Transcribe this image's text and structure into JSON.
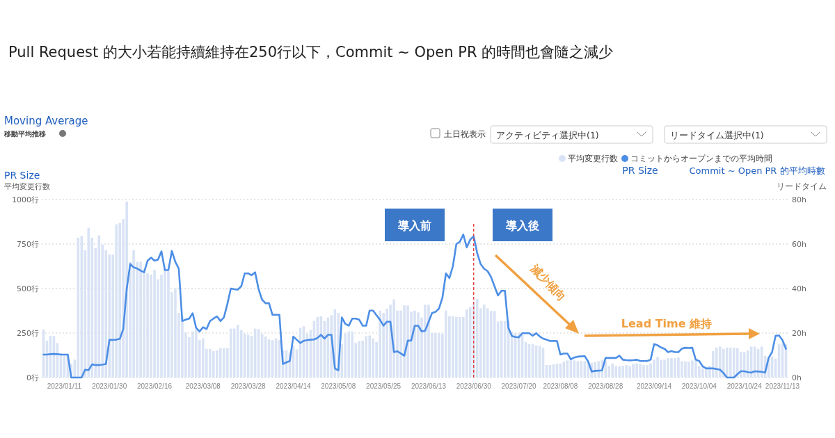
{
  "chart_data": {
    "type": "bar",
    "title": "Pull Request 的大小若能持續維持在250行以下，Commit ~ Open PR 的時間也會隨之減少",
    "ylabel": "平均変更行数",
    "y2label": "リードタイム",
    "categories": [
      null,
      null,
      null,
      null,
      null,
      null,
      "2023/01/11",
      null,
      null,
      null,
      null,
      null,
      null,
      null,
      null,
      null,
      null,
      null,
      null,
      "2023/01/30",
      null,
      null,
      null,
      null,
      null,
      null,
      null,
      null,
      null,
      null,
      null,
      null,
      "2023/02/16",
      null,
      null,
      null,
      null,
      null,
      null,
      null,
      null,
      null,
      null,
      null,
      null,
      null,
      "2023/03/08",
      null,
      null,
      null,
      null,
      null,
      null,
      null,
      null,
      null,
      null,
      null,
      null,
      "2023/03/28",
      null,
      null,
      null,
      null,
      null,
      null,
      null,
      null,
      null,
      null,
      null,
      null,
      "2023/04/14",
      null,
      null,
      null,
      null,
      null,
      null,
      null,
      null,
      null,
      null,
      null,
      null,
      "2023/05/08",
      null,
      null,
      null,
      null,
      null,
      null,
      null,
      null,
      null,
      null,
      null,
      null,
      "2023/05/25",
      null,
      null,
      null,
      null,
      null,
      null,
      null,
      null,
      null,
      null,
      null,
      null,
      "2023/06/13",
      null,
      null,
      null,
      null,
      null,
      null,
      null,
      null,
      null,
      null,
      null,
      null,
      "2023/06/30",
      null,
      null,
      null,
      null,
      null,
      null,
      null,
      null,
      null,
      null,
      null,
      null,
      "2023/07/20",
      null,
      null,
      null,
      null,
      null,
      null,
      null,
      null,
      null,
      null,
      null,
      "2023/08/08",
      null,
      null,
      null,
      null,
      null,
      null,
      null,
      null,
      null,
      null,
      null,
      null,
      "2023/08/28",
      null,
      null,
      null,
      null,
      null,
      null,
      null,
      null,
      null,
      null,
      null,
      null,
      null,
      "2023/09/14",
      null,
      null,
      null,
      null,
      null,
      null,
      null,
      null,
      null,
      null,
      null,
      null,
      "2023/10/04",
      null,
      null,
      null,
      null,
      null,
      null,
      null,
      null,
      null,
      null,
      null,
      null,
      "2023/10/24",
      null,
      null,
      null,
      null,
      null,
      null,
      null,
      null,
      null,
      null,
      "2023/11/13",
      null
    ],
    "series": [
      {
        "name": "平均変更行数",
        "color": "#d9e3f5",
        "values": [
          270,
          207,
          233,
          233,
          194,
          135,
          131,
          131,
          77,
          100,
          785,
          796,
          715,
          841,
          786,
          728,
          799,
          747,
          715,
          691,
          691,
          861,
          868,
          891,
          988,
          650,
          715,
          650,
          650,
          611,
          585,
          578,
          604,
          552,
          578,
          611,
          598,
          480,
          500,
          363,
          344,
          253,
          227,
          259,
          272,
          210,
          220,
          161,
          161,
          148,
          152,
          165,
          165,
          165,
          275,
          275,
          296,
          266,
          246,
          240,
          233,
          275,
          272,
          246,
          230,
          214,
          210,
          220,
          210,
          152,
          152,
          142,
          181,
          158,
          279,
          288,
          246,
          266,
          318,
          341,
          344,
          318,
          337,
          350,
          383,
          363,
          187,
          246,
          259,
          259,
          194,
          204,
          207,
          233,
          236,
          220,
          200,
          376,
          363,
          387,
          409,
          439,
          376,
          376,
          405,
          405,
          370,
          376,
          366,
          337,
          409,
          409,
          250,
          250,
          246,
          246,
          376,
          344,
          344,
          341,
          340,
          340,
          383,
          396,
          415,
          441,
          389,
          409,
          389,
          374,
          374,
          314,
          318,
          318,
          318,
          259,
          249,
          246,
          240,
          200,
          187,
          187,
          181,
          178,
          168,
          70,
          70,
          74,
          77,
          79,
          90,
          96,
          103,
          96,
          92,
          92,
          92,
          92,
          83,
          87,
          92,
          100,
          92,
          66,
          79,
          64,
          64,
          66,
          70,
          64,
          77,
          79,
          77,
          70,
          70,
          79,
          100,
          116,
          100,
          100,
          109,
          109,
          109,
          113,
          92,
          90,
          90,
          96,
          96,
          64,
          51,
          61,
          66,
          148,
          168,
          174,
          161,
          168,
          168,
          168,
          165,
          145,
          142,
          152,
          174,
          174,
          161,
          174,
          122,
          109,
          118,
          106,
          187,
          193,
          187
        ]
      },
      {
        "type": "line",
        "axis": "y2",
        "name": "コミットからオープンまでの平均時間",
        "color": "#4c8ee6",
        "values": [
          10.3,
          10.3,
          10.5,
          10.6,
          10.5,
          10.3,
          10.3,
          10.3,
          0,
          0,
          0,
          0,
          3.5,
          3.3,
          5.9,
          5.6,
          5.6,
          5.8,
          6.1,
          16.9,
          16.9,
          17,
          17.4,
          21.8,
          40,
          51,
          49.5,
          49,
          48,
          47.3,
          52.5,
          53.9,
          52.5,
          53,
          56.7,
          48.3,
          48.3,
          56.9,
          52,
          48.9,
          25.4,
          26,
          26.5,
          28.9,
          22.3,
          20.7,
          22.6,
          21.8,
          25.4,
          26.5,
          27.5,
          25.4,
          27,
          33,
          40,
          39.7,
          39.5,
          41,
          46.8,
          46.8,
          46,
          47.3,
          39.7,
          35,
          33.4,
          33.4,
          28.2,
          28.2,
          28.2,
          6.1,
          6.8,
          7.4,
          18.4,
          17,
          15.5,
          16.5,
          16.8,
          17,
          17.1,
          17.8,
          19.2,
          17.5,
          19.2,
          19.2,
          4,
          3.2,
          27,
          24.1,
          23.3,
          26.5,
          26.5,
          26,
          23.3,
          23.3,
          30.1,
          30.1,
          28,
          25.9,
          23.3,
          25.1,
          25.1,
          11.4,
          11.8,
          10.8,
          9.8,
          16.6,
          16.6,
          23.3,
          23.3,
          20.7,
          21,
          25,
          29,
          29.5,
          31,
          36,
          46.8,
          44.7,
          50,
          60,
          61,
          64.3,
          58.5,
          62,
          63.5,
          56,
          51,
          48.9,
          47.8,
          45.2,
          41,
          36.9,
          39,
          39,
          22.3,
          18.7,
          18.2,
          18.1,
          19.9,
          19.9,
          19.9,
          18.8,
          19.9,
          18.5,
          17.5,
          17,
          16.4,
          16.5,
          16.4,
          10.3,
          10.8,
          10.8,
          8.2,
          9,
          9.4,
          9.5,
          9.6,
          7.2,
          2.7,
          3,
          3.1,
          3.2,
          8.8,
          8.8,
          8.8,
          8.8,
          9.8,
          8,
          7.8,
          7.7,
          7.8,
          8,
          7.4,
          7.4,
          7.4,
          8,
          15,
          14.5,
          13.5,
          12.9,
          11.4,
          11.9,
          11.4,
          11.4,
          13,
          13.4,
          13.3,
          13.4,
          8,
          7.4,
          5,
          4.1,
          4.1,
          4.1,
          3.8,
          3.5,
          2,
          0,
          0,
          0,
          1.5,
          2.8,
          2.8,
          2.4,
          2.2,
          2.8,
          2.7,
          2.6,
          2.2,
          8.8,
          11.4,
          18.7,
          18.9,
          16.8,
          12.9
        ]
      }
    ],
    "ylim": [
      0,
      1000
    ],
    "yticks": [
      {
        "value": 0,
        "label": "0行"
      },
      {
        "value": 250,
        "label": "250行"
      },
      {
        "value": 500,
        "label": "500行"
      },
      {
        "value": 750,
        "label": "750行"
      },
      {
        "value": 1000,
        "label": "1000行"
      }
    ],
    "y2lim": [
      0,
      80
    ],
    "y2ticks": [
      {
        "value": 0,
        "label": "0h"
      },
      {
        "value": 20,
        "label": "20h"
      },
      {
        "value": 40,
        "label": "40h"
      },
      {
        "value": 60,
        "label": "60h"
      },
      {
        "value": 80,
        "label": "80h"
      }
    ],
    "ref_lines": [
      {
        "axis": "x",
        "value": "2023/06/30",
        "color": "#e03030",
        "line_style": "dashed"
      }
    ],
    "grid": "y",
    "legend": "top right",
    "annotations": [
      "Moving Average",
      "移動平均推移",
      "土日祝表示",
      "アクティビティ選択中(1)",
      "リードタイム選択中(1)",
      "PR Size",
      "Commit ~ Open PR 的平均時數",
      "PR Size",
      "導入前",
      "導入後",
      "減少傾向",
      "Lead Time 維持"
    ]
  }
}
